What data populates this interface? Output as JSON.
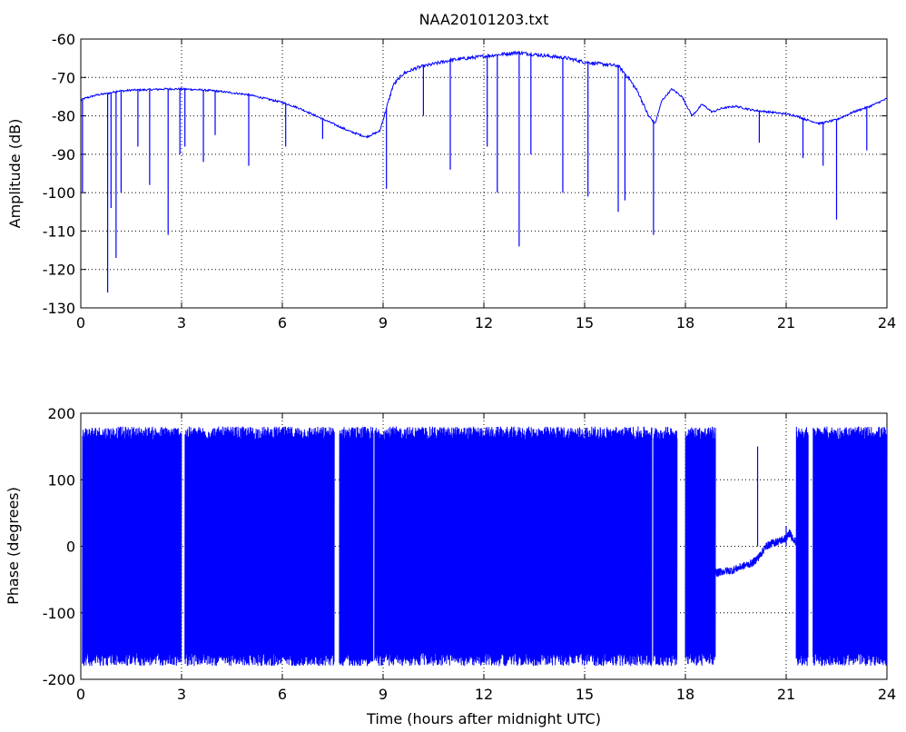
{
  "chart_data": [
    {
      "type": "line",
      "title": "NAA20101203.txt",
      "xlabel": "",
      "ylabel": "Amplitude (dB)",
      "xlim": [
        0,
        24
      ],
      "ylim": [
        -130,
        -60
      ],
      "xticks": [
        "0",
        "3",
        "6",
        "9",
        "12",
        "15",
        "18",
        "21",
        "24"
      ],
      "yticks": [
        "-60",
        "-70",
        "-80",
        "-90",
        "-100",
        "-110",
        "-120",
        "-130"
      ],
      "grid": true,
      "color": "#0000ff",
      "series": [
        {
          "x": [
            0,
            0.1,
            0.3,
            0.5,
            0.7,
            0.9,
            1.1,
            1.3,
            1.5,
            2,
            2.5,
            3,
            3.5,
            4,
            4.5,
            5,
            5.5,
            6,
            6.5,
            7,
            7.5,
            8,
            8.5,
            8.9,
            9.1,
            9.3,
            9.6,
            10,
            10.5,
            11,
            11.5,
            12,
            12.5,
            13,
            13.5,
            14,
            14.5,
            15,
            15.5,
            16,
            16.3,
            16.6,
            16.9,
            17.1,
            17.3,
            17.6,
            17.9,
            18.2,
            18.5,
            18.8,
            19.1,
            19.5,
            20,
            20.5,
            21,
            21.3,
            21.6,
            22,
            22.5,
            23,
            23.5,
            24
          ],
          "y": [
            -76,
            -75.5,
            -75,
            -74.5,
            -74.3,
            -74,
            -73.5,
            -73.5,
            -73.3,
            -73.2,
            -73,
            -73,
            -73.2,
            -73.5,
            -74,
            -74.5,
            -75.5,
            -76.5,
            -78,
            -80,
            -82,
            -84,
            -85.5,
            -84,
            -78,
            -72,
            -69,
            -67.5,
            -66.5,
            -65.5,
            -65,
            -64.5,
            -64,
            -63.5,
            -64,
            -64.5,
            -65,
            -66,
            -66.5,
            -67,
            -70,
            -74,
            -80,
            -82,
            -76,
            -73,
            -75,
            -80,
            -77,
            -79,
            -78,
            -77.5,
            -78.5,
            -79,
            -79.5,
            -80,
            -81,
            -82,
            -81,
            -79,
            -77.5,
            -75.5
          ]
        }
      ],
      "dropouts": [
        {
          "x": 0.05,
          "y": -100
        },
        {
          "x": 0.8,
          "y": -126
        },
        {
          "x": 0.9,
          "y": -104
        },
        {
          "x": 1.05,
          "y": -117
        },
        {
          "x": 1.2,
          "y": -100
        },
        {
          "x": 1.7,
          "y": -88
        },
        {
          "x": 2.05,
          "y": -98
        },
        {
          "x": 2.6,
          "y": -111
        },
        {
          "x": 2.95,
          "y": -90
        },
        {
          "x": 3.1,
          "y": -88
        },
        {
          "x": 3.65,
          "y": -92
        },
        {
          "x": 4.0,
          "y": -85
        },
        {
          "x": 5.0,
          "y": -93
        },
        {
          "x": 6.1,
          "y": -88
        },
        {
          "x": 7.2,
          "y": -86
        },
        {
          "x": 9.1,
          "y": -99
        },
        {
          "x": 10.2,
          "y": -80
        },
        {
          "x": 11.0,
          "y": -94
        },
        {
          "x": 12.1,
          "y": -88
        },
        {
          "x": 12.4,
          "y": -100
        },
        {
          "x": 13.05,
          "y": -114
        },
        {
          "x": 13.4,
          "y": -90
        },
        {
          "x": 14.35,
          "y": -100
        },
        {
          "x": 15.1,
          "y": -101
        },
        {
          "x": 16.0,
          "y": -105
        },
        {
          "x": 16.2,
          "y": -102
        },
        {
          "x": 17.05,
          "y": -111
        },
        {
          "x": 20.2,
          "y": -87
        },
        {
          "x": 21.5,
          "y": -91
        },
        {
          "x": 22.1,
          "y": -93
        },
        {
          "x": 22.5,
          "y": -107
        },
        {
          "x": 23.4,
          "y": -89
        }
      ]
    },
    {
      "type": "line",
      "title": "",
      "xlabel": "Time (hours after midnight UTC)",
      "ylabel": "Phase (degrees)",
      "xlim": [
        0,
        24
      ],
      "ylim": [
        -200,
        200
      ],
      "xticks": [
        "0",
        "3",
        "6",
        "9",
        "12",
        "15",
        "18",
        "21",
        "24"
      ],
      "yticks": [
        "200",
        "100",
        "0",
        "-100",
        "-200"
      ],
      "grid": true,
      "color": "#0000ff",
      "wrapping_segments": [
        {
          "x0": 0.05,
          "x1": 3.0
        },
        {
          "x0": 3.1,
          "x1": 7.55
        },
        {
          "x0": 7.7,
          "x1": 8.7
        },
        {
          "x0": 8.75,
          "x1": 17.0
        },
        {
          "x0": 17.05,
          "x1": 17.75
        },
        {
          "x0": 18.0,
          "x1": 18.9
        },
        {
          "x0": 21.3,
          "x1": 21.65
        },
        {
          "x0": 21.8,
          "x1": 24.0
        }
      ],
      "settled_series": {
        "x": [
          18.9,
          19.1,
          19.4,
          19.7,
          20.0,
          20.2,
          20.4,
          20.6,
          20.8,
          21.0,
          21.1,
          21.3
        ],
        "y": [
          -40,
          -38,
          -36,
          -30,
          -25,
          -15,
          0,
          5,
          8,
          12,
          20,
          5
        ]
      },
      "spikes": [
        {
          "x": 20.15,
          "y": 150
        },
        {
          "x": 21.0,
          "y": 30
        }
      ]
    }
  ]
}
